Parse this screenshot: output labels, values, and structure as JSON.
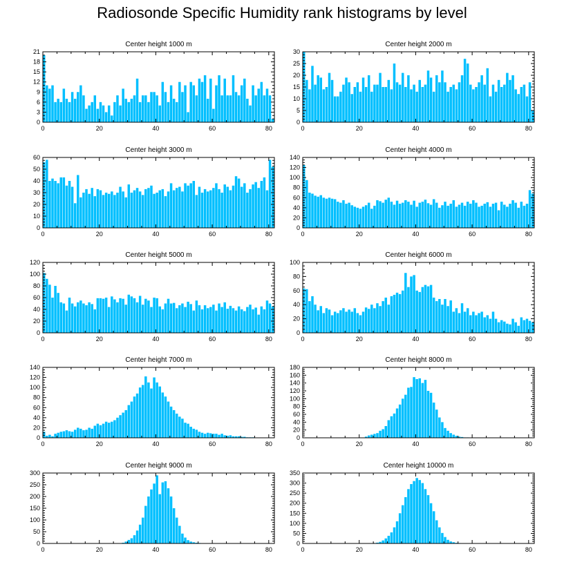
{
  "title": "Radiosonde Specific Humidity rank histograms by level",
  "colors": {
    "bar": "#00bfff",
    "axis": "#000000"
  },
  "chart_data": [
    {
      "type": "bar",
      "title": "Center height 1000 m",
      "xlim": [
        0,
        82
      ],
      "ylim": [
        0,
        21
      ],
      "xticks": [
        0,
        20,
        40,
        60,
        80
      ],
      "yticks": [
        0,
        3,
        6,
        9,
        12,
        15,
        18,
        21
      ],
      "values": [
        20,
        11,
        10,
        11,
        6,
        7,
        6,
        10,
        7,
        6,
        9,
        7,
        9,
        11,
        8,
        4,
        5,
        6,
        8,
        4,
        6,
        5,
        3,
        5,
        2,
        6,
        8,
        5,
        10,
        7,
        6,
        7,
        8,
        13,
        6,
        8,
        8,
        6,
        9,
        9,
        8,
        5,
        12,
        9,
        6,
        11,
        7,
        6,
        12,
        9,
        11,
        3,
        12,
        11,
        8,
        13,
        12,
        14,
        7,
        13,
        4,
        11,
        14,
        8,
        13,
        8,
        8,
        14,
        9,
        8,
        11,
        13,
        7,
        5,
        11,
        8,
        10,
        12,
        8,
        10,
        8,
        1
      ]
    },
    {
      "type": "bar",
      "title": "Center height 2000 m",
      "xlim": [
        0,
        82
      ],
      "ylim": [
        0,
        30
      ],
      "xticks": [
        0,
        20,
        40,
        60,
        80
      ],
      "yticks": [
        0,
        5,
        10,
        15,
        20,
        25,
        30
      ],
      "values": [
        30,
        18,
        14,
        24,
        16,
        20,
        19,
        14,
        15,
        21,
        18,
        11,
        11,
        13,
        16,
        19,
        17,
        12,
        15,
        17,
        13,
        19,
        15,
        20,
        13,
        16,
        16,
        21,
        15,
        15,
        18,
        14,
        25,
        17,
        16,
        21,
        15,
        20,
        14,
        16,
        13,
        18,
        15,
        16,
        22,
        19,
        13,
        20,
        17,
        22,
        17,
        13,
        15,
        16,
        14,
        17,
        20,
        27,
        25,
        16,
        14,
        15,
        17,
        20,
        16,
        23,
        11,
        16,
        13,
        18,
        15,
        16,
        21,
        18,
        20,
        14,
        12,
        15,
        16,
        11,
        17,
        5
      ]
    },
    {
      "type": "bar",
      "title": "Center height 3000 m",
      "xlim": [
        0,
        82
      ],
      "ylim": [
        0,
        60
      ],
      "xticks": [
        0,
        20,
        40,
        60,
        80
      ],
      "yticks": [
        0,
        10,
        20,
        30,
        40,
        50,
        60
      ],
      "values": [
        56,
        58,
        40,
        42,
        40,
        38,
        43,
        43,
        36,
        40,
        35,
        21,
        45,
        26,
        30,
        33,
        29,
        34,
        27,
        33,
        32,
        28,
        30,
        29,
        31,
        28,
        30,
        35,
        31,
        26,
        37,
        30,
        32,
        34,
        31,
        28,
        33,
        34,
        36,
        29,
        30,
        32,
        33,
        27,
        31,
        38,
        32,
        34,
        35,
        31,
        38,
        36,
        38,
        40,
        28,
        35,
        30,
        33,
        31,
        32,
        34,
        38,
        33,
        30,
        37,
        35,
        32,
        36,
        44,
        42,
        35,
        38,
        30,
        33,
        37,
        39,
        34,
        40,
        43,
        32,
        58,
        52
      ]
    },
    {
      "type": "bar",
      "title": "Center height 4000 m",
      "xlim": [
        0,
        82
      ],
      "ylim": [
        0,
        140
      ],
      "xticks": [
        0,
        20,
        40,
        60,
        80
      ],
      "yticks": [
        0,
        20,
        40,
        60,
        80,
        100,
        120,
        140
      ],
      "values": [
        125,
        95,
        70,
        68,
        64,
        62,
        65,
        60,
        58,
        60,
        58,
        57,
        52,
        50,
        55,
        48,
        50,
        45,
        42,
        40,
        38,
        42,
        45,
        50,
        38,
        44,
        55,
        53,
        50,
        56,
        60,
        52,
        46,
        54,
        48,
        50,
        55,
        52,
        46,
        54,
        42,
        50,
        52,
        56,
        49,
        46,
        57,
        50,
        40,
        45,
        52,
        44,
        48,
        55,
        42,
        46,
        50,
        44,
        52,
        48,
        55,
        50,
        42,
        44,
        48,
        51,
        42,
        48,
        50,
        35,
        52,
        46,
        42,
        48,
        55,
        50,
        40,
        52,
        44,
        48,
        75,
        68
      ]
    },
    {
      "type": "bar",
      "title": "Center height 5000 m",
      "xlim": [
        0,
        82
      ],
      "ylim": [
        0,
        120
      ],
      "xticks": [
        0,
        20,
        40,
        60,
        80
      ],
      "yticks": [
        0,
        20,
        40,
        60,
        80,
        100,
        120
      ],
      "values": [
        102,
        92,
        82,
        60,
        80,
        68,
        52,
        50,
        38,
        60,
        50,
        45,
        52,
        55,
        50,
        47,
        52,
        49,
        40,
        59,
        59,
        58,
        60,
        44,
        62,
        57,
        52,
        59,
        58,
        48,
        65,
        62,
        59,
        52,
        63,
        48,
        58,
        55,
        44,
        60,
        59,
        45,
        40,
        50,
        58,
        50,
        51,
        42,
        47,
        50,
        44,
        53,
        49,
        38,
        55,
        47,
        40,
        47,
        42,
        44,
        48,
        38,
        50,
        44,
        52,
        41,
        46,
        42,
        38,
        45,
        40,
        37,
        44,
        48,
        40,
        43,
        31,
        45,
        40,
        55,
        50,
        45
      ]
    },
    {
      "type": "bar",
      "title": "Center height 6000 m",
      "xlim": [
        0,
        82
      ],
      "ylim": [
        0,
        100
      ],
      "xticks": [
        0,
        20,
        40,
        60,
        80
      ],
      "yticks": [
        0,
        20,
        40,
        60,
        80,
        100
      ],
      "values": [
        63,
        62,
        45,
        52,
        40,
        32,
        38,
        28,
        35,
        33,
        25,
        30,
        28,
        32,
        35,
        30,
        33,
        30,
        35,
        28,
        25,
        30,
        36,
        34,
        40,
        35,
        42,
        38,
        45,
        50,
        40,
        52,
        54,
        57,
        55,
        60,
        85,
        65,
        80,
        82,
        60,
        58,
        65,
        68,
        66,
        68,
        50,
        45,
        48,
        40,
        48,
        38,
        46,
        30,
        35,
        28,
        42,
        30,
        35,
        25,
        30,
        25,
        28,
        30,
        22,
        25,
        20,
        30,
        20,
        15,
        18,
        16,
        13,
        12,
        20,
        15,
        10,
        22,
        18,
        20,
        17,
        15
      ]
    },
    {
      "type": "bar",
      "title": "Center height 7000 m",
      "xlim": [
        0,
        82
      ],
      "ylim": [
        0,
        140
      ],
      "xticks": [
        0,
        20,
        40,
        60,
        80
      ],
      "yticks": [
        0,
        20,
        40,
        60,
        80,
        100,
        120,
        140
      ],
      "values": [
        12,
        4,
        6,
        3,
        8,
        10,
        12,
        13,
        15,
        13,
        12,
        16,
        20,
        18,
        15,
        16,
        20,
        18,
        24,
        28,
        25,
        28,
        32,
        30,
        32,
        35,
        40,
        45,
        50,
        55,
        65,
        72,
        82,
        88,
        100,
        105,
        122,
        110,
        98,
        120,
        110,
        102,
        90,
        82,
        72,
        62,
        55,
        48,
        42,
        38,
        30,
        28,
        22,
        18,
        16,
        12,
        10,
        8,
        10,
        9,
        8,
        8,
        6,
        8,
        5,
        4,
        5,
        3,
        3,
        3,
        2,
        2,
        1,
        1,
        1,
        0,
        0,
        0,
        0,
        0,
        0,
        0
      ]
    },
    {
      "type": "bar",
      "title": "Center height 8000 m",
      "xlim": [
        0,
        82
      ],
      "ylim": [
        0,
        180
      ],
      "xticks": [
        0,
        20,
        40,
        60,
        80
      ],
      "yticks": [
        0,
        20,
        40,
        60,
        80,
        100,
        120,
        140,
        160,
        180
      ],
      "values": [
        0,
        0,
        0,
        0,
        0,
        0,
        0,
        0,
        0,
        0,
        0,
        0,
        0,
        0,
        0,
        0,
        0,
        0,
        0,
        0,
        0,
        0,
        3,
        6,
        8,
        10,
        12,
        18,
        22,
        30,
        45,
        55,
        62,
        75,
        85,
        100,
        110,
        128,
        130,
        155,
        150,
        152,
        140,
        148,
        120,
        115,
        90,
        72,
        52,
        40,
        25,
        18,
        12,
        8,
        5,
        3,
        2,
        1,
        1,
        0,
        0,
        0,
        0,
        0,
        0,
        0,
        0,
        0,
        0,
        0,
        0,
        0,
        0,
        0,
        0,
        0,
        0,
        0,
        0,
        0,
        0,
        0
      ]
    },
    {
      "type": "bar",
      "title": "Center height 9000 m",
      "xlim": [
        0,
        82
      ],
      "ylim": [
        0,
        300
      ],
      "xticks": [
        0,
        20,
        40,
        60,
        80
      ],
      "yticks": [
        0,
        50,
        100,
        150,
        200,
        250,
        300
      ],
      "values": [
        0,
        0,
        0,
        0,
        0,
        0,
        0,
        0,
        0,
        0,
        0,
        0,
        0,
        0,
        0,
        0,
        0,
        0,
        0,
        0,
        0,
        0,
        0,
        0,
        0,
        0,
        0,
        0,
        3,
        8,
        15,
        22,
        35,
        55,
        80,
        110,
        160,
        200,
        230,
        255,
        290,
        210,
        260,
        265,
        235,
        200,
        150,
        110,
        75,
        42,
        25,
        14,
        8,
        5,
        3,
        2,
        1,
        0,
        0,
        0,
        0,
        0,
        0,
        0,
        0,
        0,
        0,
        0,
        0,
        0,
        0,
        0,
        0,
        0,
        0,
        0,
        0,
        0,
        0,
        0,
        0,
        0
      ]
    },
    {
      "type": "bar",
      "title": "Center height 10000 m",
      "xlim": [
        0,
        82
      ],
      "ylim": [
        0,
        350
      ],
      "xticks": [
        0,
        20,
        40,
        60,
        80
      ],
      "yticks": [
        0,
        50,
        100,
        150,
        200,
        250,
        300,
        350
      ],
      "values": [
        0,
        0,
        0,
        0,
        0,
        0,
        0,
        0,
        0,
        0,
        0,
        0,
        0,
        0,
        0,
        0,
        0,
        0,
        0,
        0,
        0,
        0,
        0,
        0,
        0,
        2,
        4,
        8,
        15,
        25,
        38,
        55,
        80,
        110,
        150,
        190,
        230,
        270,
        295,
        310,
        325,
        315,
        300,
        270,
        240,
        200,
        160,
        115,
        80,
        52,
        32,
        18,
        10,
        6,
        3,
        2,
        1,
        0,
        0,
        0,
        0,
        0,
        0,
        0,
        0,
        0,
        0,
        0,
        0,
        0,
        0,
        0,
        0,
        0,
        0,
        0,
        0,
        0,
        0,
        0,
        0,
        0
      ]
    }
  ]
}
